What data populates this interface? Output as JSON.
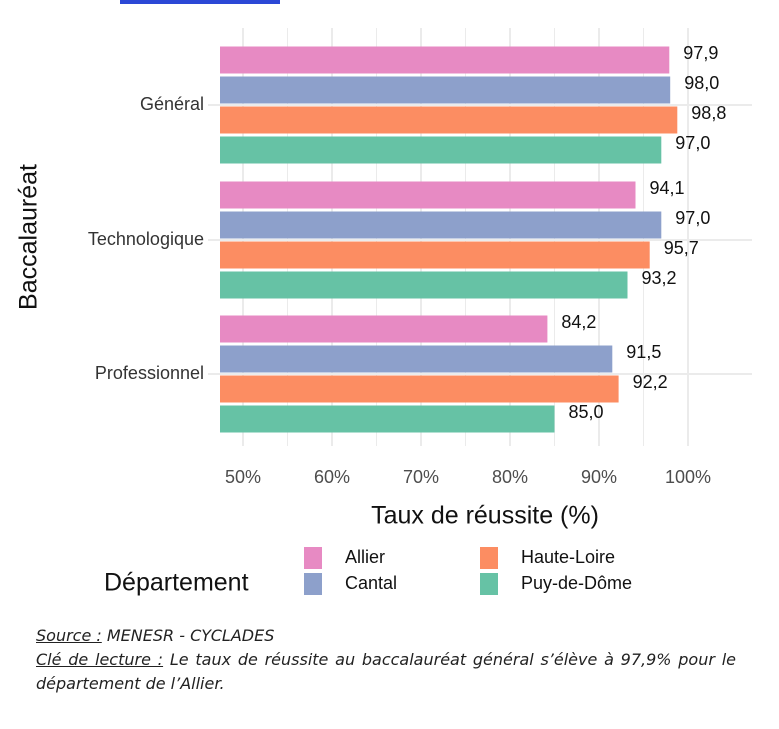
{
  "colors": {
    "Allier": "#E78AC3",
    "Cantal": "#8DA0CB",
    "Haute-Loire": "#FC8D62",
    "Puy-de-Dôme": "#66C2A5",
    "grid": "#ebebeb",
    "text": "#222222"
  },
  "chart_data": {
    "type": "bar",
    "orientation": "horizontal",
    "categories": [
      "Général",
      "Technologique",
      "Professionnel"
    ],
    "series": [
      {
        "name": "Allier",
        "values": [
          97.9,
          94.1,
          84.2
        ],
        "labels": [
          "97,9",
          "94,1",
          "84,2"
        ]
      },
      {
        "name": "Cantal",
        "values": [
          98.0,
          97.0,
          91.5
        ],
        "labels": [
          "98,0",
          "97,0",
          "91,5"
        ]
      },
      {
        "name": "Haute-Loire",
        "values": [
          98.8,
          95.7,
          92.2
        ],
        "labels": [
          "98,8",
          "95,7",
          "92,2"
        ]
      },
      {
        "name": "Puy-de-Dôme",
        "values": [
          97.0,
          93.2,
          85.0
        ],
        "labels": [
          "97,0",
          "93,2",
          "85,0"
        ]
      }
    ],
    "xlim": [
      50,
      100
    ],
    "xticks": [
      50,
      60,
      70,
      80,
      90,
      100
    ],
    "xtick_labels": [
      "50%",
      "60%",
      "70%",
      "80%",
      "90%",
      "100%"
    ],
    "xlabel": "Taux de réussite (%)",
    "ylabel": "Baccalauréat",
    "legend_title": "Département",
    "legend_placement": "bottom"
  },
  "footer": {
    "source_key": "Source :",
    "source_value": " MENESR - CYCLADES",
    "lecture_key": "Clé de lecture :",
    "lecture_value": " Le taux de réussite au baccalauréat général s’élève à 97,9% pour le département de l’Allier."
  }
}
